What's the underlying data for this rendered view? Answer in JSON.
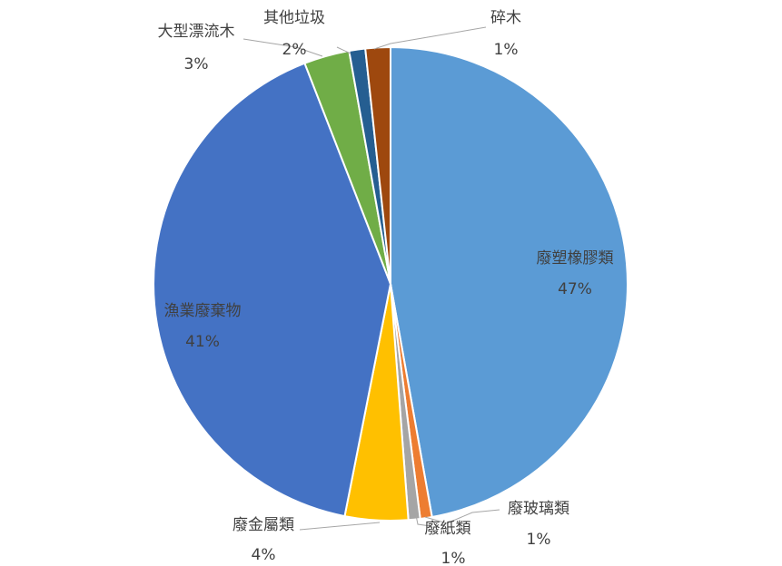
{
  "chart_data": {
    "type": "pie",
    "title": "",
    "slices": [
      {
        "name": "廢塑橡膠類",
        "value": 47,
        "label": "47%",
        "color": "#5B9BD5"
      },
      {
        "name": "廢玻璃類",
        "value": 1,
        "label": "1%",
        "color": "#ED7D31"
      },
      {
        "name": "廢紙類",
        "value": 1,
        "label": "1%",
        "color": "#A5A5A5"
      },
      {
        "name": "廢金屬類",
        "value": 4,
        "label": "4%",
        "color": "#FFC000"
      },
      {
        "name": "漁業廢棄物",
        "value": 41,
        "label": "41%",
        "color": "#4472C4"
      },
      {
        "name": "大型漂流木",
        "value": 3,
        "label": "3%",
        "color": "#70AD47"
      },
      {
        "name": "其他垃圾",
        "value": 2,
        "label": "2%",
        "color": "#255E91"
      },
      {
        "name": "碎木",
        "value": 1,
        "label": "1%",
        "color": "#9E480E"
      }
    ],
    "legend": "none"
  }
}
